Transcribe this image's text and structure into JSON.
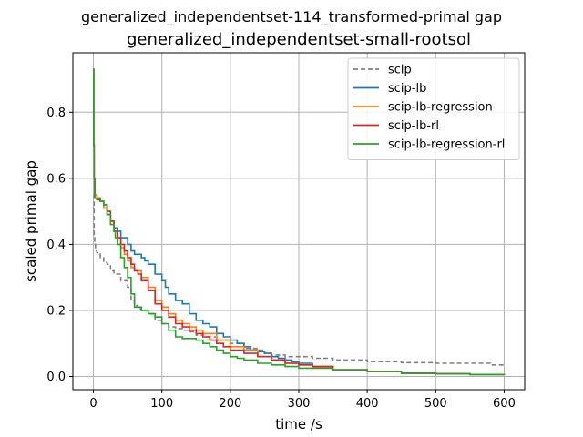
{
  "chart_data": {
    "type": "line",
    "suptitle": "generalized_independentset-114_transformed-primal gap",
    "title": "generalized_independentset-small-rootsol",
    "xlabel": "time /s",
    "ylabel": "scaled primal gap",
    "xlim": [
      -30,
      630
    ],
    "ylim": [
      -0.04,
      0.98
    ],
    "xticks": [
      0,
      100,
      200,
      300,
      400,
      500,
      600
    ],
    "yticks": [
      0.0,
      0.2,
      0.4,
      0.6,
      0.8
    ],
    "xtick_labels": [
      "0",
      "100",
      "200",
      "300",
      "400",
      "500",
      "600"
    ],
    "ytick_labels": [
      "0.0",
      "0.2",
      "0.4",
      "0.6",
      "0.8"
    ],
    "grid": true,
    "legend_position": "top-right",
    "series": [
      {
        "name": "scip",
        "color": "#808080",
        "dash": true,
        "x": [
          0,
          1,
          2,
          3,
          5,
          10,
          15,
          20,
          25,
          30,
          40,
          50,
          55,
          60,
          65,
          70,
          80,
          90,
          100,
          110,
          120,
          130,
          140,
          150,
          160,
          180,
          200,
          220,
          240,
          250,
          260,
          280,
          300,
          320,
          350,
          400,
          450,
          500,
          550,
          580,
          600
        ],
        "y": [
          0.55,
          0.42,
          0.4,
          0.38,
          0.375,
          0.36,
          0.345,
          0.34,
          0.32,
          0.31,
          0.29,
          0.27,
          0.23,
          0.215,
          0.205,
          0.2,
          0.19,
          0.17,
          0.16,
          0.15,
          0.145,
          0.14,
          0.135,
          0.125,
          0.12,
          0.11,
          0.1,
          0.085,
          0.08,
          0.07,
          0.065,
          0.06,
          0.06,
          0.055,
          0.05,
          0.045,
          0.042,
          0.04,
          0.04,
          0.035,
          0.032
        ]
      },
      {
        "name": "scip-lb",
        "color": "#1f77b4",
        "dash": false,
        "x": [
          0,
          0.5,
          1,
          2,
          5,
          10,
          15,
          20,
          25,
          30,
          35,
          40,
          50,
          55,
          60,
          70,
          75,
          80,
          90,
          100,
          105,
          110,
          120,
          130,
          140,
          150,
          160,
          170,
          180,
          190,
          200,
          210,
          220,
          230,
          240,
          250,
          260,
          270,
          280,
          290,
          300,
          320,
          350,
          400,
          450,
          500,
          550,
          600
        ],
        "y": [
          0.93,
          0.7,
          0.6,
          0.55,
          0.54,
          0.53,
          0.51,
          0.49,
          0.47,
          0.45,
          0.44,
          0.42,
          0.4,
          0.38,
          0.37,
          0.36,
          0.35,
          0.34,
          0.31,
          0.29,
          0.27,
          0.25,
          0.23,
          0.22,
          0.19,
          0.17,
          0.16,
          0.15,
          0.13,
          0.12,
          0.11,
          0.1,
          0.09,
          0.08,
          0.075,
          0.07,
          0.06,
          0.055,
          0.05,
          0.045,
          0.04,
          0.03,
          0.02,
          0.015,
          0.01,
          0.008,
          0.006,
          0.004
        ]
      },
      {
        "name": "scip-lb-regression",
        "color": "#ff7f0e",
        "dash": false,
        "x": [
          0,
          0.5,
          1,
          2,
          5,
          10,
          15,
          20,
          25,
          30,
          35,
          40,
          45,
          50,
          55,
          60,
          70,
          80,
          90,
          100,
          110,
          120,
          130,
          140,
          150,
          160,
          180,
          200,
          220,
          240,
          260,
          280,
          300,
          320,
          350,
          400,
          450,
          500,
          550,
          600
        ],
        "y": [
          0.93,
          0.7,
          0.6,
          0.55,
          0.54,
          0.53,
          0.51,
          0.49,
          0.47,
          0.44,
          0.42,
          0.39,
          0.37,
          0.35,
          0.33,
          0.32,
          0.3,
          0.27,
          0.23,
          0.21,
          0.19,
          0.17,
          0.16,
          0.15,
          0.14,
          0.13,
          0.11,
          0.09,
          0.08,
          0.06,
          0.05,
          0.04,
          0.035,
          0.03,
          0.02,
          0.015,
          0.01,
          0.008,
          0.006,
          0.005
        ]
      },
      {
        "name": "scip-lb-rl",
        "color": "#d62728",
        "dash": false,
        "x": [
          0,
          0.5,
          1,
          2,
          5,
          10,
          15,
          20,
          25,
          30,
          35,
          40,
          45,
          50,
          55,
          60,
          65,
          70,
          80,
          90,
          100,
          110,
          120,
          130,
          140,
          150,
          160,
          170,
          180,
          190,
          200,
          220,
          240,
          260,
          280,
          300,
          320,
          350,
          400,
          450,
          500,
          550,
          600
        ],
        "y": [
          0.93,
          0.7,
          0.6,
          0.54,
          0.535,
          0.53,
          0.52,
          0.5,
          0.47,
          0.44,
          0.42,
          0.4,
          0.38,
          0.36,
          0.34,
          0.32,
          0.31,
          0.29,
          0.26,
          0.22,
          0.2,
          0.18,
          0.16,
          0.15,
          0.14,
          0.13,
          0.12,
          0.11,
          0.1,
          0.09,
          0.08,
          0.07,
          0.06,
          0.05,
          0.04,
          0.035,
          0.03,
          0.02,
          0.015,
          0.01,
          0.008,
          0.006,
          0.005
        ]
      },
      {
        "name": "scip-lb-regression-rl",
        "color": "#2ca02c",
        "dash": false,
        "x": [
          0,
          0.5,
          1,
          2,
          5,
          10,
          15,
          20,
          25,
          30,
          32,
          35,
          40,
          45,
          50,
          55,
          60,
          70,
          80,
          90,
          100,
          110,
          120,
          130,
          140,
          150,
          160,
          170,
          180,
          190,
          200,
          210,
          220,
          240,
          260,
          280,
          300,
          350,
          400,
          450,
          500,
          550,
          600
        ],
        "y": [
          0.93,
          0.7,
          0.6,
          0.54,
          0.54,
          0.53,
          0.52,
          0.49,
          0.46,
          0.44,
          0.42,
          0.4,
          0.36,
          0.33,
          0.3,
          0.25,
          0.21,
          0.2,
          0.19,
          0.18,
          0.16,
          0.14,
          0.12,
          0.115,
          0.115,
          0.11,
          0.1,
          0.09,
          0.08,
          0.07,
          0.06,
          0.055,
          0.05,
          0.04,
          0.035,
          0.03,
          0.025,
          0.02,
          0.015,
          0.01,
          0.008,
          0.006,
          0.005
        ]
      }
    ]
  }
}
